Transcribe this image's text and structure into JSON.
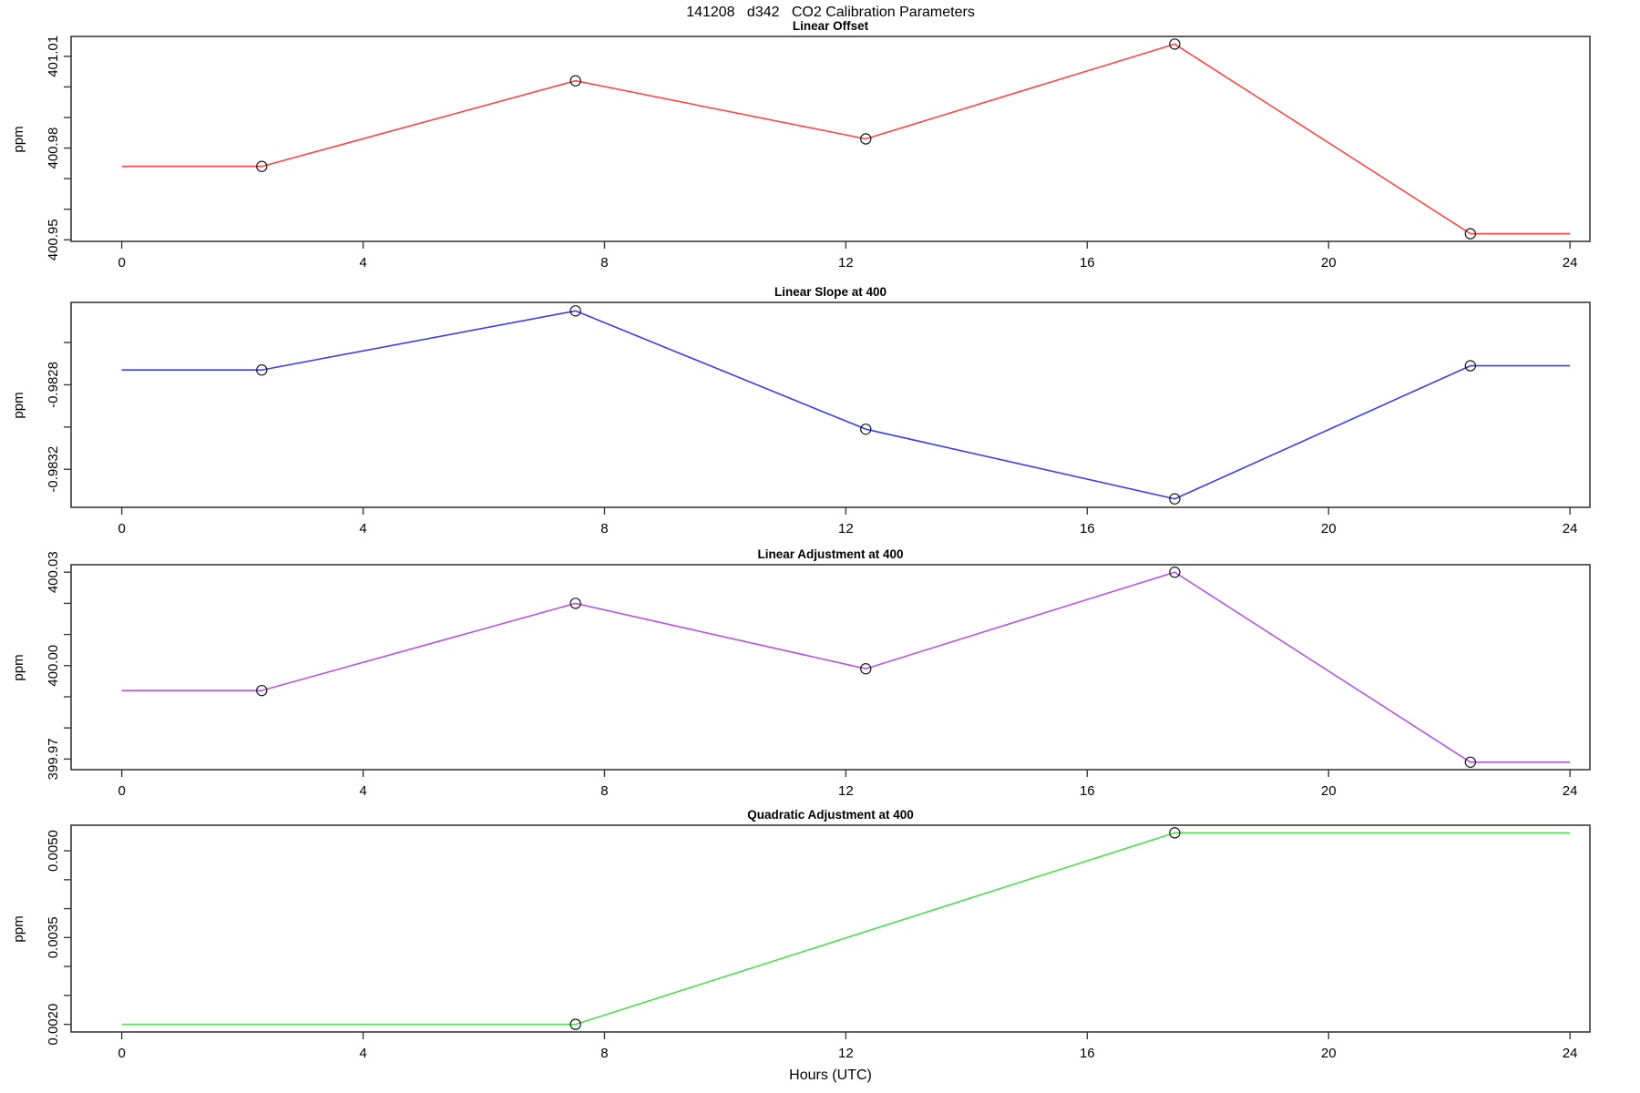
{
  "title": "141208   d342   CO2 Calibration Parameters",
  "xaxis": {
    "label": "Hours (UTC)",
    "xlim": [
      -0.84,
      24.33
    ],
    "ticks": [
      {
        "v": 0,
        "label": "0"
      },
      {
        "v": 4,
        "label": "4"
      },
      {
        "v": 8,
        "label": "8"
      },
      {
        "v": 12,
        "label": "12"
      },
      {
        "v": 16,
        "label": "16"
      },
      {
        "v": 20,
        "label": "20"
      },
      {
        "v": 24,
        "label": "24"
      }
    ]
  },
  "chart_data": [
    {
      "type": "line",
      "title": "Linear Offset",
      "ylabel": "ppm",
      "color": "#ff4444",
      "marker_color": "#1a1a1a",
      "ylim": [
        400.9495,
        401.0165
      ],
      "yticks": [
        {
          "v": 400.95,
          "label": "400.95"
        },
        {
          "v": 400.96,
          "label": ""
        },
        {
          "v": 400.97,
          "label": ""
        },
        {
          "v": 400.98,
          "label": "400.98"
        },
        {
          "v": 400.99,
          "label": ""
        },
        {
          "v": 401.0,
          "label": ""
        },
        {
          "v": 401.01,
          "label": "401.01"
        }
      ],
      "x": [
        0,
        2.32,
        7.52,
        12.33,
        17.45,
        22.35,
        24
      ],
      "y": [
        400.974,
        400.974,
        401.002,
        400.983,
        401.014,
        400.952,
        400.952
      ],
      "marker_x": [
        2.32,
        7.52,
        12.33,
        17.45,
        22.35
      ],
      "marker_y": [
        400.974,
        401.002,
        400.983,
        401.014,
        400.952
      ]
    },
    {
      "type": "line",
      "title": "Linear Slope at 400",
      "ylabel": "ppm",
      "color": "#3b3bf0",
      "marker_color": "#1a1a1a",
      "ylim": [
        -0.98338,
        -0.98241
      ],
      "yticks": [
        {
          "v": -0.9832,
          "label": "-0.9832"
        },
        {
          "v": -0.983,
          "label": ""
        },
        {
          "v": -0.9828,
          "label": "-0.9828"
        },
        {
          "v": -0.9826,
          "label": ""
        }
      ],
      "x": [
        0,
        2.32,
        7.52,
        12.33,
        17.45,
        22.35,
        24
      ],
      "y": [
        -0.98273,
        -0.98273,
        -0.98245,
        -0.98301,
        -0.98334,
        -0.98271,
        -0.98271
      ],
      "marker_x": [
        2.32,
        7.52,
        12.33,
        17.45,
        22.35
      ],
      "marker_y": [
        -0.98273,
        -0.98245,
        -0.98301,
        -0.98334,
        -0.98271
      ]
    },
    {
      "type": "line",
      "title": "Linear Adjustment at 400",
      "ylabel": "ppm",
      "color": "#b653e6",
      "marker_color": "#1a1a1a",
      "ylim": [
        399.9666,
        400.0324
      ],
      "yticks": [
        {
          "v": 399.97,
          "label": "399.97"
        },
        {
          "v": 399.98,
          "label": ""
        },
        {
          "v": 399.99,
          "label": ""
        },
        {
          "v": 400.0,
          "label": "400.00"
        },
        {
          "v": 400.01,
          "label": ""
        },
        {
          "v": 400.02,
          "label": ""
        },
        {
          "v": 400.03,
          "label": "400.03"
        }
      ],
      "x": [
        0,
        2.32,
        7.52,
        12.33,
        17.45,
        22.35,
        24
      ],
      "y": [
        399.992,
        399.992,
        400.02,
        399.999,
        400.03,
        399.969,
        399.969
      ],
      "marker_x": [
        2.32,
        7.52,
        12.33,
        17.45,
        22.35
      ],
      "marker_y": [
        399.992,
        400.02,
        399.999,
        400.03,
        399.969
      ]
    },
    {
      "type": "line",
      "title": "Quadratic Adjustment at 400",
      "ylabel": "ppm",
      "color": "#4ade4a",
      "marker_color": "#1a1a1a",
      "ylim": [
        0.001868,
        0.005442
      ],
      "yticks": [
        {
          "v": 0.002,
          "label": "0.0020"
        },
        {
          "v": 0.0025,
          "label": ""
        },
        {
          "v": 0.003,
          "label": ""
        },
        {
          "v": 0.0035,
          "label": "0.0035"
        },
        {
          "v": 0.004,
          "label": ""
        },
        {
          "v": 0.0045,
          "label": ""
        },
        {
          "v": 0.005,
          "label": "0.0050"
        }
      ],
      "x": [
        0,
        7.52,
        17.45,
        24
      ],
      "y": [
        0.002,
        0.002,
        0.00531,
        0.00531
      ],
      "marker_x": [
        7.52,
        17.45
      ],
      "marker_y": [
        0.002,
        0.00531
      ]
    }
  ]
}
